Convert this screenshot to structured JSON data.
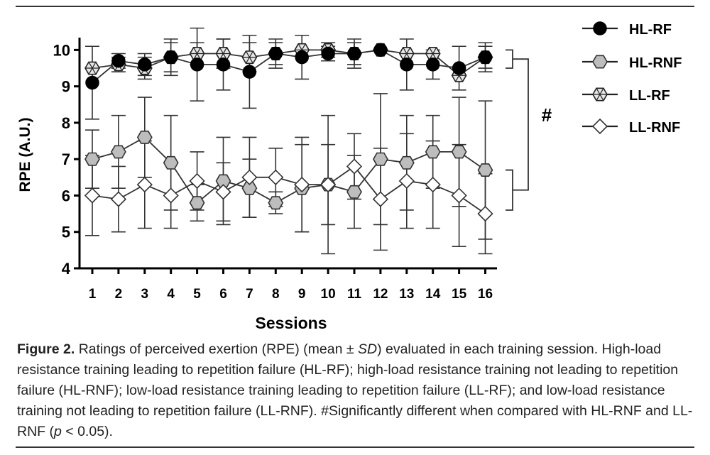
{
  "chart_data": {
    "type": "line",
    "xlabel": "Sessions",
    "ylabel": "RPE (A.U.)",
    "x": [
      1,
      2,
      3,
      4,
      5,
      6,
      7,
      8,
      9,
      10,
      11,
      12,
      13,
      14,
      15,
      16
    ],
    "xticks": [
      "1",
      "2",
      "3",
      "4",
      "5",
      "6",
      "7",
      "8",
      "9",
      "10",
      "11",
      "12",
      "13",
      "14",
      "15",
      "16"
    ],
    "ylim": [
      4,
      10.3
    ],
    "yticks": [
      "4",
      "5",
      "6",
      "7",
      "8",
      "9",
      "10"
    ],
    "series": [
      {
        "name": "HL-RF",
        "marker": "circle",
        "fill": "#000000",
        "values": [
          9.1,
          9.7,
          9.6,
          9.8,
          9.6,
          9.6,
          9.4,
          9.9,
          9.8,
          9.9,
          9.9,
          10.0,
          9.6,
          9.6,
          9.5,
          9.8
        ],
        "sd": [
          1.0,
          0.2,
          0.3,
          0.4,
          1.0,
          0.7,
          1.0,
          0.3,
          0.6,
          0.2,
          0.3,
          0.0,
          0.7,
          0.4,
          0.6,
          0.3
        ]
      },
      {
        "name": "HL-RNF",
        "marker": "hexagon",
        "fill": "#bdbdbd",
        "values": [
          7.0,
          7.2,
          7.6,
          6.9,
          5.8,
          6.4,
          6.2,
          5.8,
          6.2,
          6.3,
          6.1,
          7.0,
          6.9,
          7.2,
          7.2,
          6.7
        ],
        "sd": [
          0.8,
          1.0,
          1.1,
          1.3,
          0.5,
          1.2,
          0.8,
          0.3,
          1.2,
          1.1,
          1.0,
          1.8,
          1.3,
          1.0,
          1.5,
          1.9
        ]
      },
      {
        "name": "LL-RF",
        "marker": "star-hexagon",
        "fill": "#e6e6e6",
        "values": [
          9.5,
          9.6,
          9.5,
          9.8,
          9.9,
          9.9,
          9.8,
          9.9,
          10.0,
          10.0,
          9.9,
          10.0,
          9.9,
          9.9,
          9.3,
          9.8
        ],
        "sd": [
          0.0,
          0.2,
          0.3,
          0.5,
          0.3,
          0.4,
          0.4,
          0.4,
          0.0,
          0.2,
          0.4,
          0.0,
          0.0,
          0.0,
          0.0,
          0.4
        ]
      },
      {
        "name": "LL-RNF",
        "marker": "diamond",
        "fill": "#ffffff",
        "values": [
          6.0,
          5.9,
          6.3,
          6.0,
          6.4,
          6.1,
          6.5,
          6.5,
          6.3,
          6.3,
          6.8,
          5.9,
          6.4,
          6.3,
          6.0,
          5.5
        ],
        "sd": [
          1.1,
          0.9,
          1.2,
          0.9,
          0.8,
          0.8,
          1.1,
          0.8,
          1.3,
          1.9,
          0.9,
          1.4,
          1.3,
          1.2,
          1.4,
          1.1
        ]
      }
    ],
    "annotations": [
      {
        "text": "#",
        "meaning": "bracket from HL-RF/LL-RF group to HL-RNF/LL-RNF group"
      }
    ],
    "legend": "top-right",
    "grid": false
  },
  "caption": {
    "label": "Figure 2.",
    "part1": " Ratings of perceived exertion (RPE) (mean ± ",
    "sd_label": "SD",
    "part2": ") evaluated in each training session. High-load resistance training leading to repetition failure (HL-RF); high-load resistance training not leading to repetition failure (HL-RNF); low-load resistance training leading to repetition failure (LL-RF); and low-load resistance training not leading to repetition failure (LL-RNF). #Significantly different when compared with HL-RNF and LL-RNF (",
    "p_label": "p",
    "part3": " < 0.05)."
  }
}
